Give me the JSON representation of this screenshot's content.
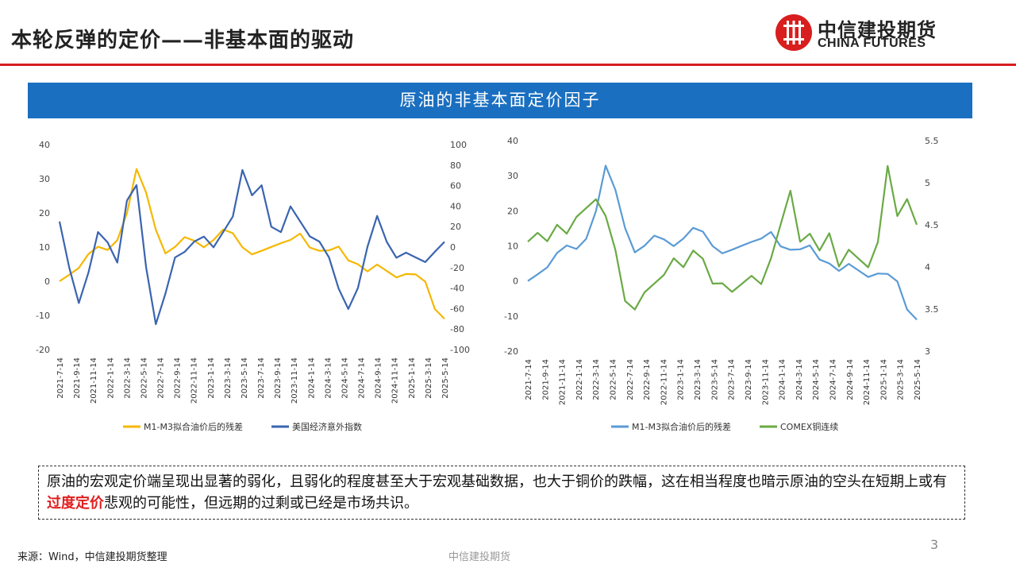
{
  "header": {
    "title": "本轮反弹的定价——非基本面的驱动",
    "logo_cn": "中信建投期货",
    "logo_en": "CHINA FUTURES",
    "accent_color": "#d81e1e"
  },
  "banner": {
    "text": "原油的非基本面定价因子",
    "color": "#1a6fc0"
  },
  "note": {
    "part1": "原油的宏观定价端呈现出显著的弱化，且弱化的程度甚至大于宏观基础数据，也大于铜价的跌幅，这在相当程度也暗示原油的空头在短期上或有",
    "highlight": "过度定价",
    "part2": "悲观的可能性，但远期的过剩或已经是市场共识。"
  },
  "footer": {
    "source": "来源：Wind，中信建投期货整理",
    "center": "中信建投期货",
    "page": "3"
  },
  "chart_data": [
    {
      "type": "line",
      "x_labels": [
        "2021-7-14",
        "2021-9-14",
        "2021-11-14",
        "2022-1-14",
        "2022-3-14",
        "2022-5-14",
        "2022-7-14",
        "2022-9-14",
        "2022-11-14",
        "2023-1-14",
        "2023-3-14",
        "2023-5-14",
        "2023-7-14",
        "2023-9-14",
        "2023-11-14",
        "2024-1-14",
        "2024-3-14",
        "2024-5-14",
        "2024-7-14",
        "2024-9-14",
        "2024-11-14",
        "2025-1-14",
        "2025-3-14",
        "2025-5-14"
      ],
      "y_left": {
        "ticks": [
          40,
          30,
          20,
          10,
          0,
          -10,
          -20
        ],
        "range": [
          -20,
          40
        ]
      },
      "y_right": {
        "ticks": [
          100,
          80,
          60,
          40,
          20,
          0,
          -20,
          -40,
          -60,
          -80,
          -100
        ],
        "range": [
          -100,
          100
        ]
      },
      "legend": [
        "M1-M3拟合油价后的残差",
        "美国经济意外指数"
      ],
      "series": [
        {
          "name": "M1-M3拟合油价后的残差",
          "axis": "left",
          "color": "#f5b800",
          "values": [
            0,
            2,
            4,
            8,
            10,
            9,
            12,
            20,
            33,
            26,
            15,
            8,
            10,
            13,
            12,
            10,
            12,
            15,
            14,
            10,
            8,
            9,
            10,
            11,
            12,
            14,
            10,
            9,
            9,
            10,
            6,
            5,
            3,
            5,
            3,
            1,
            2,
            2,
            0,
            -8,
            -11
          ]
        },
        {
          "name": "美国经济意外指数",
          "axis": "right",
          "color": "#3a64b0",
          "values": [
            25,
            -20,
            -55,
            -25,
            15,
            5,
            -15,
            45,
            60,
            -20,
            -75,
            -45,
            -10,
            -5,
            5,
            10,
            0,
            15,
            30,
            75,
            50,
            60,
            20,
            15,
            40,
            25,
            10,
            5,
            -10,
            -40,
            -60,
            -40,
            0,
            30,
            5,
            -10,
            -5,
            -10,
            -15,
            -5,
            5
          ]
        }
      ]
    },
    {
      "type": "line",
      "x_labels": [
        "2021-7-14",
        "2021-9-14",
        "2021-11-14",
        "2022-1-14",
        "2022-3-14",
        "2022-5-14",
        "2022-7-14",
        "2022-9-14",
        "2022-11-14",
        "2023-1-14",
        "2023-3-14",
        "2023-5-14",
        "2023-7-14",
        "2023-9-14",
        "2023-11-14",
        "2024-1-14",
        "2024-3-14",
        "2024-5-14",
        "2024-7-14",
        "2024-9-14",
        "2024-11-14",
        "2025-1-14",
        "2025-3-14",
        "2025-5-14"
      ],
      "y_left": {
        "ticks": [
          40,
          30,
          20,
          10,
          0,
          -10,
          -20
        ],
        "range": [
          -20,
          40
        ]
      },
      "y_right": {
        "ticks": [
          5.5,
          5,
          4.5,
          4,
          3.5,
          3
        ],
        "range": [
          3,
          5.5
        ]
      },
      "legend": [
        "M1-M3拟合油价后的残差",
        "COMEX铜连续"
      ],
      "series": [
        {
          "name": "M1-M3拟合油价后的残差",
          "axis": "left",
          "color": "#5b9bd5",
          "values": [
            0,
            2,
            4,
            8,
            10,
            9,
            12,
            20,
            33,
            26,
            15,
            8,
            10,
            13,
            12,
            10,
            12,
            15,
            14,
            10,
            8,
            9,
            10,
            11,
            12,
            14,
            10,
            9,
            9,
            10,
            6,
            5,
            3,
            5,
            3,
            1,
            2,
            2,
            0,
            -8,
            -11
          ]
        },
        {
          "name": "COMEX铜连续",
          "axis": "right",
          "color": "#6aaa45",
          "values": [
            4.3,
            4.4,
            4.3,
            4.5,
            4.4,
            4.6,
            4.7,
            4.8,
            4.6,
            4.2,
            3.6,
            3.5,
            3.7,
            3.8,
            3.9,
            4.1,
            4.0,
            4.2,
            4.1,
            3.8,
            3.8,
            3.7,
            3.8,
            3.9,
            3.8,
            4.1,
            4.5,
            4.9,
            4.3,
            4.4,
            4.2,
            4.4,
            4.0,
            4.2,
            4.1,
            4.0,
            4.3,
            5.2,
            4.6,
            4.8,
            4.5
          ]
        }
      ]
    }
  ]
}
